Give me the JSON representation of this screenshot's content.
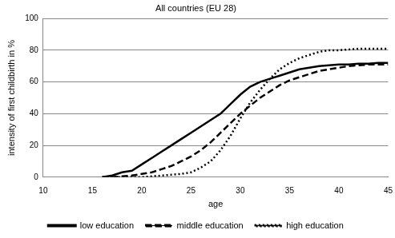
{
  "chart_data": {
    "type": "line",
    "title": "All countries (EU 28)",
    "x_label": "age",
    "y_label": "intensity of first childbirth in %",
    "x": [
      16,
      17,
      18,
      19,
      20,
      21,
      22,
      23,
      24,
      25,
      26,
      27,
      28,
      29,
      30,
      31,
      32,
      33,
      34,
      35,
      36,
      37,
      38,
      39,
      40,
      41,
      42,
      43,
      44,
      45
    ],
    "series": [
      {
        "name": "low education",
        "color": "#000000",
        "line_style": "solid",
        "values": [
          0,
          1,
          3,
          4,
          8,
          12,
          16,
          20,
          24,
          28,
          32,
          36,
          40,
          46,
          52,
          57,
          60,
          62,
          64,
          66,
          68,
          69,
          70,
          70.5,
          71,
          71,
          71.5,
          71.5,
          72,
          72
        ]
      },
      {
        "name": "middle education",
        "color": "#000000",
        "line_style": "dashed",
        "values": [
          0,
          0,
          0.5,
          1,
          2,
          3,
          5,
          7,
          10,
          13,
          17,
          22,
          28,
          34,
          40,
          45,
          50,
          54,
          58,
          61,
          63,
          65,
          67,
          68,
          69,
          70,
          70.5,
          71,
          71,
          71
        ]
      },
      {
        "name": "high education",
        "color": "#000000",
        "line_style": "dotted",
        "values": [
          0,
          0,
          0,
          0,
          0,
          0.5,
          1,
          1.5,
          2,
          3,
          6,
          10,
          17,
          26,
          37,
          47,
          55,
          62,
          68,
          72,
          75,
          77,
          79,
          80,
          80,
          80.5,
          81,
          81,
          81,
          81
        ]
      }
    ],
    "xlim": [
      10,
      45
    ],
    "xticks": [
      10,
      15,
      20,
      25,
      30,
      35,
      40,
      45
    ],
    "ylim": [
      0,
      100
    ],
    "yticks": [
      0,
      20,
      40,
      60,
      80,
      100
    ],
    "grid": true,
    "legend": "bottom"
  }
}
